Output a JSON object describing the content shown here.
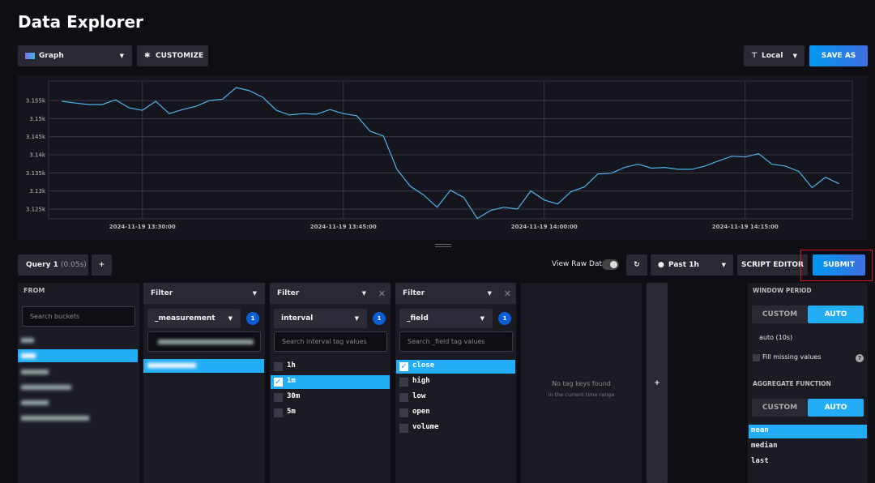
{
  "header": {
    "title": "Data Explorer"
  },
  "toolbar": {
    "view_type": "Graph",
    "customize": "CUSTOMIZE",
    "timezone": "Local",
    "save_as": "SAVE AS"
  },
  "chart_data": {
    "type": "line",
    "color": "#4fb3e8",
    "grid": true,
    "x": [
      "2024-11-19 13:24",
      "2024-11-19 13:25",
      "2024-11-19 13:26",
      "2024-11-19 13:27",
      "2024-11-19 13:28",
      "2024-11-19 13:29",
      "2024-11-19 13:30",
      "2024-11-19 13:31",
      "2024-11-19 13:32",
      "2024-11-19 13:33",
      "2024-11-19 13:34",
      "2024-11-19 13:35",
      "2024-11-19 13:36",
      "2024-11-19 13:37",
      "2024-11-19 13:38",
      "2024-11-19 13:39",
      "2024-11-19 13:40",
      "2024-11-19 13:41",
      "2024-11-19 13:42",
      "2024-11-19 13:43",
      "2024-11-19 13:44",
      "2024-11-19 13:45",
      "2024-11-19 13:46",
      "2024-11-19 13:47",
      "2024-11-19 13:48",
      "2024-11-19 13:49",
      "2024-11-19 13:50",
      "2024-11-19 13:51",
      "2024-11-19 13:52",
      "2024-11-19 13:53",
      "2024-11-19 13:54",
      "2024-11-19 13:55",
      "2024-11-19 13:56",
      "2024-11-19 13:57",
      "2024-11-19 13:58",
      "2024-11-19 13:59",
      "2024-11-19 14:00",
      "2024-11-19 14:01",
      "2024-11-19 14:02",
      "2024-11-19 14:03",
      "2024-11-19 14:04",
      "2024-11-19 14:05",
      "2024-11-19 14:06",
      "2024-11-19 14:07",
      "2024-11-19 14:08",
      "2024-11-19 14:09",
      "2024-11-19 14:10",
      "2024-11-19 14:11",
      "2024-11-19 14:12",
      "2024-11-19 14:13",
      "2024-11-19 14:14",
      "2024-11-19 14:15",
      "2024-11-19 14:16",
      "2024-11-19 14:17",
      "2024-11-19 14:18",
      "2024-11-19 14:19",
      "2024-11-19 14:20",
      "2024-11-19 14:21",
      "2024-11-19 14:22"
    ],
    "values": [
      3154.8,
      3154.3,
      3153.9,
      3153.9,
      3155.2,
      3153.0,
      3152.3,
      3154.8,
      3151.4,
      3152.5,
      3153.4,
      3155.0,
      3155.4,
      3158.6,
      3157.7,
      3155.9,
      3152.3,
      3151.0,
      3151.4,
      3151.2,
      3152.5,
      3151.4,
      3150.8,
      3146.5,
      3145.2,
      3136.0,
      3131.3,
      3128.9,
      3125.5,
      3130.2,
      3128.2,
      3122.4,
      3124.6,
      3125.5,
      3125.0,
      3130.0,
      3127.5,
      3126.4,
      3129.8,
      3131.1,
      3134.7,
      3134.9,
      3136.5,
      3137.4,
      3136.3,
      3136.5,
      3136.0,
      3136.0,
      3136.9,
      3138.3,
      3139.6,
      3139.4,
      3140.3,
      3137.4,
      3136.9,
      3135.4,
      3130.9,
      3133.8,
      3132.0
    ],
    "xlim": [
      "2024-11-19 13:23",
      "2024-11-19 14:23"
    ],
    "xticks": [
      "2024-11-19 13:30:00",
      "2024-11-19 13:45:00",
      "2024-11-19 14:00:00",
      "2024-11-19 14:15:00"
    ],
    "ylim": [
      3122.3,
      3160.4
    ],
    "yticks": [
      {
        "value": 3125,
        "label": "3.125k"
      },
      {
        "value": 3130,
        "label": "3.13k"
      },
      {
        "value": 3135,
        "label": "3.135k"
      },
      {
        "value": 3140,
        "label": "3.14k"
      },
      {
        "value": 3145,
        "label": "3.145k"
      },
      {
        "value": 3150,
        "label": "3.15k"
      },
      {
        "value": 3155,
        "label": "3.155k"
      }
    ]
  },
  "query": {
    "tab": "Query 1",
    "tab_time": "(0.05s)",
    "add": "+",
    "view_raw": "View Raw Data",
    "time_range": "Past 1h",
    "script_editor": "SCRIPT EDITOR",
    "submit": "SUBMIT"
  },
  "from": {
    "title": "FROM",
    "search": "Search buckets"
  },
  "filters": [
    {
      "title": "Filter",
      "key": "_measurement",
      "count": "1"
    },
    {
      "title": "Filter",
      "key": "interval",
      "count": "1",
      "search": "Search interval tag values",
      "items": [
        "1h",
        "1m",
        "30m",
        "5m"
      ],
      "checked": [
        false,
        true,
        false,
        false
      ]
    },
    {
      "title": "Filter",
      "key": "_field",
      "count": "1",
      "search": "Search _field tag values",
      "items": [
        "close",
        "high",
        "low",
        "open",
        "volume"
      ],
      "checked": [
        true,
        false,
        false,
        false,
        false
      ]
    }
  ],
  "empty": {
    "message": "No tag keys found",
    "detail": "in the current time range"
  },
  "add_filter": "+",
  "window": {
    "title": "WINDOW PERIOD",
    "custom": "CUSTOM",
    "auto": "AUTO",
    "period": "auto (10s)",
    "fill": "Fill missing values",
    "help": "?"
  },
  "aggregate": {
    "title": "AGGREGATE FUNCTION",
    "custom": "CUSTOM",
    "auto": "AUTO",
    "functions": [
      "mean",
      "median",
      "last"
    ],
    "selected": 0
  }
}
